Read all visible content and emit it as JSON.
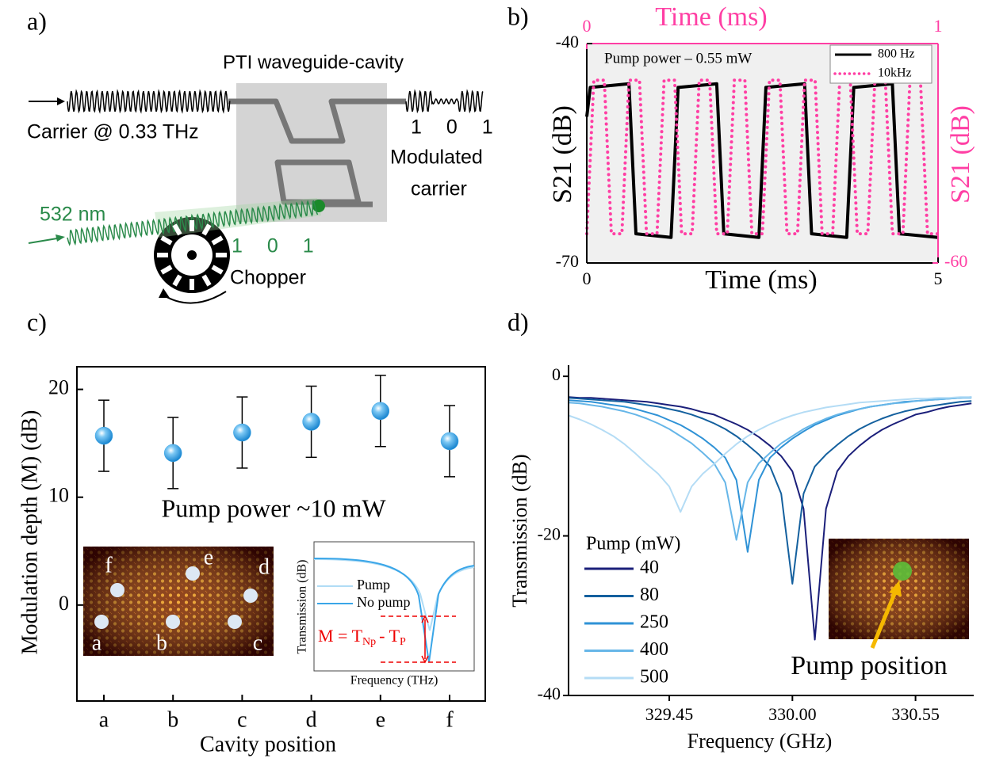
{
  "panel_labels": [
    "a)",
    "b)",
    "c)",
    "d)"
  ],
  "diagram": {
    "box_title": "PTI waveguide-cavity",
    "carrier": "Carrier @ 0.33 THz",
    "output_bits": "1 0 1",
    "output": [
      "Modulated",
      "carrier"
    ],
    "laser": "532 nm",
    "laser_bits": "1 0 1",
    "chopper": "Chopper"
  },
  "chart_data": [
    {
      "type": "line",
      "annotation": "Pump power – 0.55 mW",
      "xlabel": "Time (ms)",
      "x2label": "Time (ms)",
      "ylabel": "S21 (dB)",
      "y2label": "S21 (dB)",
      "xlim": [
        0,
        5
      ],
      "xticks": [
        0,
        5
      ],
      "x2lim": [
        0,
        1
      ],
      "x2ticks": [
        0,
        1
      ],
      "ylim": [
        -70,
        -40
      ],
      "yticks": [
        -40,
        -70
      ],
      "y2lim": [
        -60,
        -30
      ],
      "y2ticks": [
        -60
      ],
      "background": "#f0f0f0",
      "legend": "upper right",
      "series": [
        {
          "name": "800 Hz",
          "color": "#000000",
          "style": "solid",
          "x": [
            0,
            0.05,
            0.6,
            0.7,
            1.2,
            1.3,
            1.85,
            1.95,
            2.45,
            2.55,
            3.1,
            3.2,
            3.7,
            3.8,
            4.35,
            4.45,
            5
          ],
          "values": [
            -50,
            -46,
            -45.5,
            -66,
            -66.5,
            -46,
            -45.5,
            -66,
            -66.5,
            -46,
            -45.5,
            -66,
            -66.5,
            -46,
            -45.5,
            -66,
            -66.5
          ]
        },
        {
          "name": "10kHz",
          "color": "#ff3fa4",
          "style": "dotted",
          "axis": "y2",
          "xaxis": "x2",
          "x": [
            0,
            0.02,
            0.05,
            0.07,
            0.1,
            0.12,
            0.15,
            0.17,
            0.2,
            0.22,
            0.25,
            0.27,
            0.3,
            0.32,
            0.35,
            0.37,
            0.4,
            0.42,
            0.45,
            0.47,
            0.5,
            0.52,
            0.55,
            0.57,
            0.6,
            0.62,
            0.65,
            0.67,
            0.7,
            0.72,
            0.75,
            0.77,
            0.8,
            0.82,
            0.85,
            0.87,
            0.9,
            0.92,
            0.95,
            0.97,
            1.0
          ],
          "values": [
            -56,
            -35,
            -35,
            -56,
            -56,
            -35,
            -35,
            -56,
            -56,
            -35,
            -35,
            -56,
            -56,
            -35,
            -35,
            -56,
            -56,
            -35,
            -35,
            -56,
            -56,
            -35,
            -35,
            -56,
            -56,
            -35,
            -35,
            -56,
            -56,
            -35,
            -35,
            -56,
            -56,
            -35,
            -35,
            -56,
            -56,
            -35,
            -35,
            -56,
            -56
          ]
        }
      ]
    },
    {
      "type": "scatter",
      "annotation": "Pump power ~10 mW",
      "xlabel": "Cavity position",
      "ylabel": "Modulation depth (M) (dB)",
      "categories": [
        "a",
        "b",
        "c",
        "d",
        "e",
        "f"
      ],
      "values": [
        15.7,
        14.1,
        16,
        17,
        18,
        15.2
      ],
      "errors": [
        3.3,
        3.3,
        3.3,
        3.3,
        3.3,
        3.3
      ],
      "color": "#3aa6e8",
      "ylim": [
        -8.9,
        22.1
      ],
      "yticks": [
        0,
        10,
        20
      ],
      "inset_image_labels": [
        "f",
        "e",
        "d",
        "a",
        "b",
        "c"
      ],
      "inset_chart": {
        "ylabel": "Transmission (dB)",
        "xlabel": "Frequency (THz)",
        "legend": [
          "Pump",
          "No pump"
        ],
        "equation": {
          "prefix": "M = T",
          "sub1": "Np",
          "mid": "- T",
          "sub2": "P"
        }
      }
    },
    {
      "type": "line",
      "xlabel": "Frequency (GHz)",
      "ylabel": "Transmission (dB)",
      "legend_title": "Pump (mW)",
      "legend": "lower left",
      "xlim": [
        329.0,
        330.81
      ],
      "xticks": [
        329.45,
        {
          "value": 330,
          "label": "330.00"
        },
        330.55
      ],
      "ylim": [
        -40,
        1.4
      ],
      "yticks": [
        0,
        -20,
        -40
      ],
      "inset_label": "Pump position",
      "x": [
        329.0,
        329.05,
        329.1,
        329.15,
        329.2,
        329.25,
        329.3,
        329.35,
        329.4,
        329.45,
        329.5,
        329.55,
        329.6,
        329.65,
        329.7,
        329.75,
        329.8,
        329.85,
        329.9,
        329.95,
        330.0,
        330.05,
        330.1,
        330.15,
        330.2,
        330.25,
        330.3,
        330.35,
        330.4,
        330.45,
        330.5,
        330.55,
        330.6,
        330.65,
        330.7,
        330.75,
        330.8
      ],
      "series": [
        {
          "name": "40",
          "color": "#1b1f7a",
          "values": [
            -2.6,
            -2.7,
            -2.7,
            -2.8,
            -2.9,
            -3.0,
            -3.1,
            -3.2,
            -3.4,
            -3.6,
            -3.8,
            -4.1,
            -4.5,
            -4.8,
            -5.4,
            -6.0,
            -6.7,
            -7.6,
            -8.7,
            -10.0,
            -11.9,
            -16.6,
            -33,
            -16.6,
            -11.9,
            -10.0,
            -8.7,
            -7.6,
            -6.7,
            -6.0,
            -5.4,
            -4.8,
            -4.5,
            -4.1,
            -3.8,
            -3.6,
            -3.4
          ]
        },
        {
          "name": "80",
          "color": "#14609e",
          "values": [
            -2.7,
            -2.8,
            -2.9,
            -3.0,
            -3.1,
            -3.2,
            -3.4,
            -3.6,
            -3.8,
            -4.1,
            -4.4,
            -4.8,
            -5.3,
            -5.9,
            -6.6,
            -7.5,
            -8.6,
            -9.8,
            -11.3,
            -14.7,
            -26,
            -14.7,
            -11.3,
            -9.8,
            -8.6,
            -7.5,
            -6.6,
            -5.9,
            -5.3,
            -4.8,
            -4.4,
            -4.1,
            -3.8,
            -3.6,
            -3.4,
            -3.2,
            -3.1
          ]
        },
        {
          "name": "250",
          "color": "#2f92d6",
          "values": [
            -3.0,
            -3.1,
            -3.2,
            -3.4,
            -3.6,
            -3.8,
            -4.1,
            -4.5,
            -4.9,
            -5.5,
            -6.1,
            -6.9,
            -7.8,
            -8.9,
            -10.2,
            -13.0,
            -22,
            -13.0,
            -10.2,
            -8.9,
            -7.8,
            -6.9,
            -6.1,
            -5.5,
            -4.9,
            -4.5,
            -4.1,
            -3.8,
            -3.6,
            -3.4,
            -3.2,
            -3.1,
            -3.0,
            -2.9,
            -2.8,
            -2.7,
            -2.6
          ]
        },
        {
          "name": "400",
          "color": "#66b6e8",
          "values": [
            -3.3,
            -3.4,
            -3.6,
            -3.8,
            -4.1,
            -4.4,
            -4.8,
            -5.3,
            -5.9,
            -6.6,
            -7.5,
            -8.4,
            -9.6,
            -10.9,
            -13.3,
            -20.5,
            -13.3,
            -10.9,
            -9.6,
            -8.4,
            -7.5,
            -6.6,
            -5.9,
            -5.3,
            -4.8,
            -4.4,
            -4.1,
            -3.8,
            -3.6,
            -3.4,
            -3.3,
            -3.1,
            -3.0,
            -2.9,
            -2.8,
            -2.7,
            -2.7
          ]
        },
        {
          "name": "500",
          "color": "#b4dcf5",
          "values": [
            -4.9,
            -5.4,
            -6.0,
            -6.7,
            -7.5,
            -8.5,
            -9.7,
            -11.0,
            -12.2,
            -13.8,
            -17,
            -13.8,
            -12.2,
            -11.0,
            -9.7,
            -8.5,
            -7.5,
            -6.7,
            -6.0,
            -5.4,
            -4.9,
            -4.5,
            -4.2,
            -3.9,
            -3.7,
            -3.5,
            -3.3,
            -3.2,
            -3.1,
            -3.0,
            -2.9,
            -2.8,
            -2.8,
            -2.7,
            -2.7,
            -2.6,
            -2.6
          ]
        }
      ]
    }
  ]
}
